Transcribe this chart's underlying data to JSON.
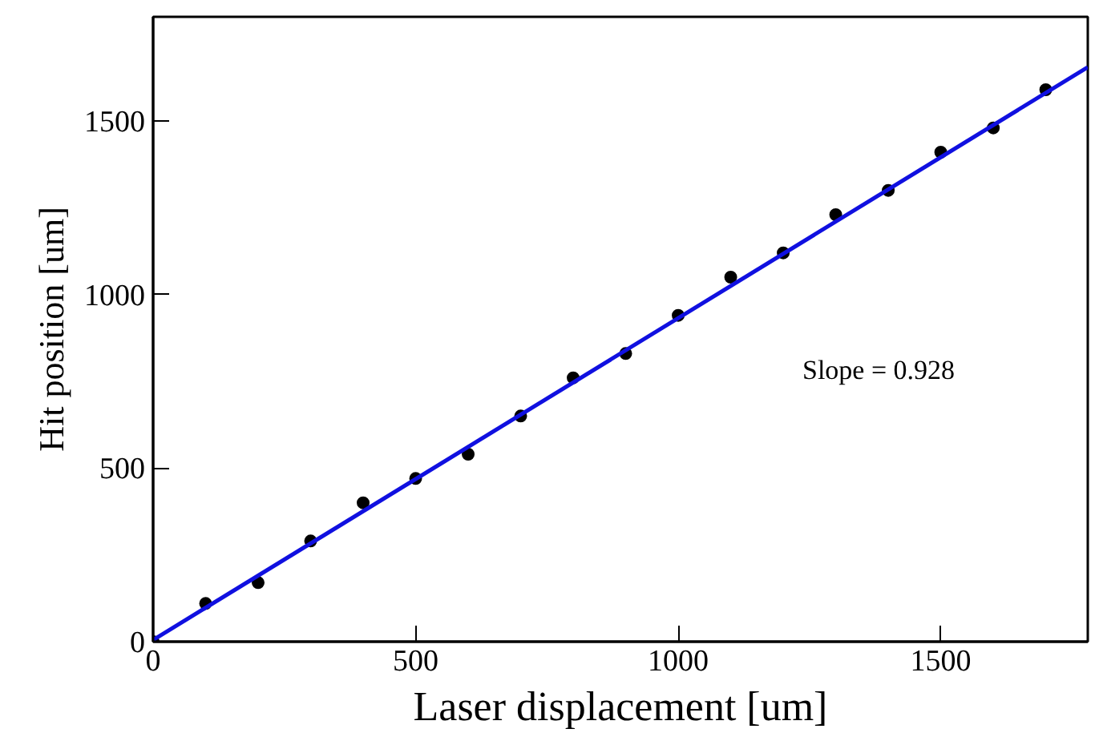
{
  "chart_data": {
    "type": "scatter",
    "xlabel": "Laser displacement [um]",
    "ylabel": "Hit position [um]",
    "annotations": [
      "Slope = 0.928"
    ],
    "xlim": [
      0,
      1780
    ],
    "ylim": [
      0,
      1800
    ],
    "xticks": [
      0,
      500,
      1000,
      1500
    ],
    "yticks": [
      0,
      500,
      1000,
      1500
    ],
    "grid": false,
    "series": [
      {
        "marker": "circle",
        "color": "#000000",
        "x": [
          0,
          100,
          200,
          300,
          400,
          500,
          600,
          700,
          800,
          900,
          1000,
          1100,
          1200,
          1300,
          1400,
          1500,
          1600,
          1700
        ],
        "values": [
          0,
          110,
          170,
          290,
          400,
          470,
          540,
          650,
          760,
          830,
          940,
          1050,
          1120,
          1230,
          1300,
          1410,
          1480,
          1590
        ]
      },
      {
        "type": "line",
        "color": "#1010e0",
        "x": [
          0,
          1780
        ],
        "values": [
          5,
          1655
        ],
        "line_style": "solid"
      }
    ]
  }
}
